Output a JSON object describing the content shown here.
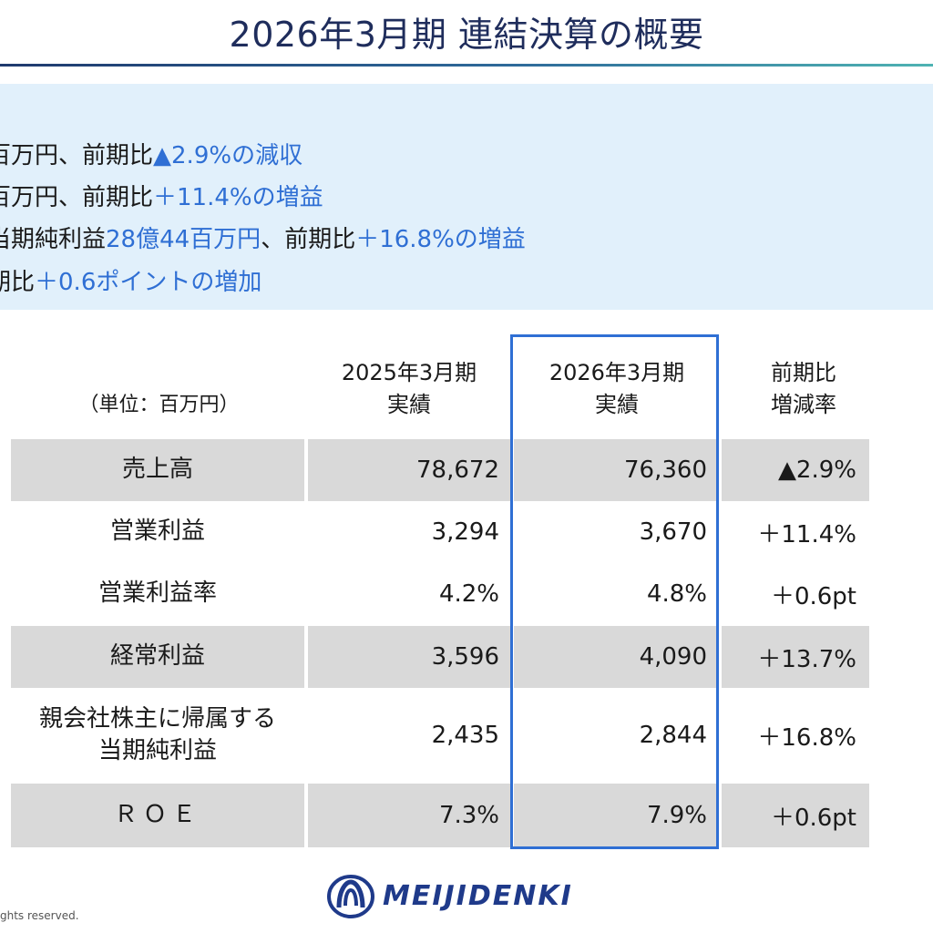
{
  "title": "2026年3月期 連結決算の概要",
  "summary": [
    {
      "black": "百万円、前期比",
      "blue": "▲2.9%の減収"
    },
    {
      "black": "百万円、前期比",
      "blue": "＋11.4%の増益"
    },
    {
      "black": "当期純利益",
      "blue": "28億44百万円",
      "black2": "、前期比",
      "blue2": "＋16.8%の増益"
    },
    {
      "black": "期比",
      "blue": "＋0.6ポイントの増加"
    }
  ],
  "table": {
    "unit": "（単位：百万円）",
    "headers": {
      "prev": [
        "2025年3月期",
        "実績"
      ],
      "cur": [
        "2026年3月期",
        "実績"
      ],
      "rate": [
        "前期比",
        "増減率"
      ]
    },
    "rows": [
      {
        "label": [
          "売上高"
        ],
        "prev": "78,672",
        "cur": "76,360",
        "rate": "▲2.9%"
      },
      {
        "label": [
          "営業利益"
        ],
        "prev": "3,294",
        "cur": "3,670",
        "rate": "＋11.4%"
      },
      {
        "label": [
          "営業利益率"
        ],
        "prev": "4.2%",
        "cur": "4.8%",
        "rate": "＋0.6pt"
      },
      {
        "label": [
          "経常利益"
        ],
        "prev": "3,596",
        "cur": "4,090",
        "rate": "＋13.7%"
      },
      {
        "label": [
          "親会社株主に帰属する",
          "当期純利益"
        ],
        "prev": "2,435",
        "cur": "2,844",
        "rate": "＋16.8%"
      },
      {
        "label": [
          "ＲＯＥ"
        ],
        "prev": "7.3%",
        "cur": "7.9%",
        "rate": "＋0.6pt"
      }
    ]
  },
  "footer": {
    "copyright": "ghts reserved.",
    "logo_text": "MEIJIDENKI"
  },
  "colors": {
    "accent_blue": "#2f6fd4",
    "title_navy": "#1f2d5c",
    "summary_bg": "#e1f0fb",
    "row_shade": "#d9d9d9",
    "logo_navy": "#1f3a8a"
  }
}
